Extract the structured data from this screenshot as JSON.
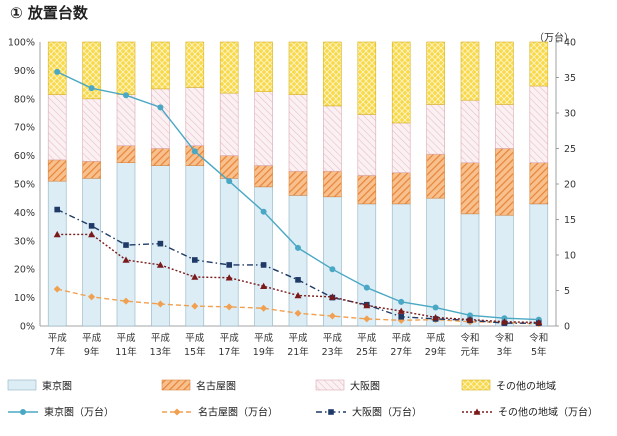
{
  "page": {
    "title": "① 放置台数"
  },
  "chart_data": {
    "type": "bar",
    "title": "① 放置台数",
    "categories": [
      "平成7年",
      "平成9年",
      "平成11年",
      "平成13年",
      "平成15年",
      "平成17年",
      "平成19年",
      "平成21年",
      "平成23年",
      "平成25年",
      "平成27年",
      "平成29年",
      "令和元年",
      "令和3年",
      "令和5年"
    ],
    "category_lines": [
      [
        "平成",
        "7年"
      ],
      [
        "平成",
        "9年"
      ],
      [
        "平成",
        "11年"
      ],
      [
        "平成",
        "13年"
      ],
      [
        "平成",
        "15年"
      ],
      [
        "平成",
        "17年"
      ],
      [
        "平成",
        "19年"
      ],
      [
        "平成",
        "21年"
      ],
      [
        "平成",
        "23年"
      ],
      [
        "平成",
        "25年"
      ],
      [
        "平成",
        "27年"
      ],
      [
        "平成",
        "29年"
      ],
      [
        "令和",
        "元年"
      ],
      [
        "令和",
        "3年"
      ],
      [
        "令和",
        "5年"
      ]
    ],
    "y_left": {
      "ticks": [
        "0%",
        "10%",
        "20%",
        "30%",
        "40%",
        "50%",
        "60%",
        "70%",
        "80%",
        "90%",
        "100%"
      ],
      "ylim": [
        0,
        100
      ],
      "unit": "%"
    },
    "y_right": {
      "ticks": [
        "0",
        "5",
        "10",
        "15",
        "20",
        "25",
        "30",
        "35",
        "40"
      ],
      "ylim": [
        0,
        40
      ],
      "unit_label": "（万台）"
    },
    "bar_series": [
      {
        "name": "東京圏",
        "color": "#dcedf5",
        "values": [
          51,
          52,
          57.5,
          56.5,
          56.5,
          52,
          49,
          46,
          45.5,
          43,
          43,
          45,
          39.5,
          39,
          43
        ]
      },
      {
        "name": "名古屋圏",
        "color": "#f2a360",
        "values": [
          7.5,
          6,
          6,
          6,
          7,
          8,
          7.5,
          8.5,
          9,
          10,
          11,
          15.5,
          18,
          23.5,
          14.5
        ]
      },
      {
        "name": "大阪圏",
        "color": "#f5e6ea",
        "values": [
          23,
          22,
          18,
          21,
          20.5,
          22,
          26,
          27,
          23,
          21.5,
          17.5,
          17.5,
          22,
          15.5,
          27
        ]
      },
      {
        "name": "その他の地域",
        "color": "#f8d94a",
        "values": [
          18.5,
          20,
          18.5,
          16.5,
          16,
          18,
          17.5,
          18.5,
          22.5,
          25.5,
          28.5,
          22,
          20.5,
          22,
          15.5
        ]
      }
    ],
    "line_series": [
      {
        "name": "東京圏（万台）",
        "color": "#4aa8c4",
        "marker": "circle",
        "dash": "solid",
        "values": [
          35.8,
          33.5,
          32.5,
          30.8,
          24.6,
          20.4,
          16.1,
          11,
          8,
          5.4,
          3.4,
          2.6,
          1.5,
          1.1,
          0.9
        ]
      },
      {
        "name": "名古屋圏（万台）",
        "color": "#f0a050",
        "marker": "diamond",
        "dash": "dashed",
        "values": [
          5.2,
          4.1,
          3.5,
          3.1,
          2.8,
          2.7,
          2.5,
          1.8,
          1.4,
          1,
          0.8,
          0.9,
          0.6,
          0.5,
          0.3
        ]
      },
      {
        "name": "大阪圏（万台）",
        "color": "#1f3a66",
        "marker": "square",
        "dash": "dashdot",
        "values": [
          16.4,
          14.1,
          11.4,
          11.6,
          9.3,
          8.6,
          8.6,
          6.5,
          4,
          3,
          1.3,
          1,
          0.8,
          0.4,
          0.4
        ]
      },
      {
        "name": "その他の地域（万台）",
        "color": "#7a1a1a",
        "marker": "triangle",
        "dash": "dotted",
        "values": [
          12.9,
          12.9,
          9.3,
          8.6,
          6.9,
          6.8,
          5.6,
          4.3,
          4.1,
          2.9,
          2.1,
          1.2,
          0.9,
          0.6,
          0.5
        ]
      }
    ],
    "legend": {
      "placement": "bottom",
      "bar_labels": [
        "東京圏",
        "名古屋圏",
        "大阪圏",
        "その他の地域"
      ],
      "line_labels": [
        "東京圏（万台）",
        "名古屋圏（万台）",
        "大阪圏（万台）",
        "その他の地域（万台）"
      ]
    },
    "grid": false
  }
}
